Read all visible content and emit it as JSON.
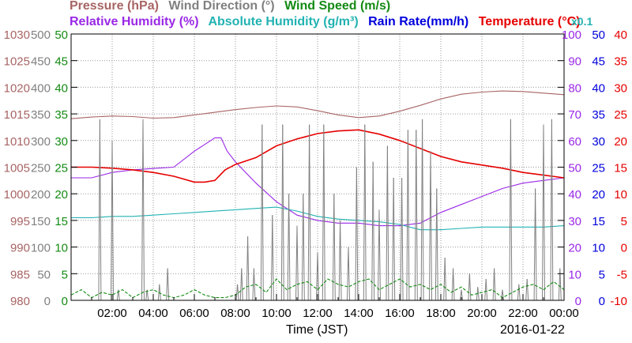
{
  "legend": {
    "row1": [
      {
        "text": "Pressure (hPa)",
        "color": "#a86464"
      },
      {
        "text": "Wind Direction (°)",
        "color": "#808080"
      },
      {
        "text": "Wind Speed (m/s)",
        "color": "#138b13"
      }
    ],
    "row2": [
      {
        "text": "Relative Humidity (%)",
        "color": "#9a28e6"
      },
      {
        "text": "Absolute Humidity (g/m³)",
        "color": "#22b2b2"
      },
      {
        "text": "Rain Rate(mm/h)",
        "color": "#0000dc"
      },
      {
        "text": "Temperature (°C)",
        "color": "#e60000"
      }
    ],
    "rain_factor": "x0.1",
    "rain_factor_color": "#22b2b2"
  },
  "xaxis": {
    "title": "Time (JST)",
    "date": "2016-01-22"
  },
  "chart_data": {
    "type": "line",
    "x_unit": "hours since 00:00 JST",
    "xlim": [
      0,
      24
    ],
    "xtick_labels": [
      "02:00",
      "04:00",
      "06:00",
      "08:00",
      "10:00",
      "12:00",
      "14:00",
      "16:00",
      "18:00",
      "20:00",
      "22:00",
      "00:00"
    ],
    "xtick_values": [
      2,
      4,
      6,
      8,
      10,
      12,
      14,
      16,
      18,
      20,
      22,
      24
    ],
    "axes": [
      {
        "name": "Pressure (hPa)",
        "side": "left",
        "color": "#a86464",
        "range": [
          980,
          1030
        ],
        "ticks": [
          980,
          985,
          990,
          995,
          1000,
          1005,
          1010,
          1015,
          1020,
          1025,
          1030
        ]
      },
      {
        "name": "Wind Direction (°)",
        "side": "left",
        "color": "#808080",
        "range": [
          0,
          500
        ],
        "ticks": [
          0,
          50,
          100,
          150,
          200,
          250,
          300,
          350,
          400,
          450,
          500
        ]
      },
      {
        "name": "Wind Speed (m/s)",
        "side": "left",
        "color": "#138b13",
        "range": [
          0,
          50
        ],
        "ticks": [
          0,
          5,
          10,
          15,
          20,
          25,
          30,
          35,
          40,
          45,
          50
        ]
      },
      {
        "name": "Relative Humidity (%)",
        "side": "right",
        "color": "#9a28e6",
        "range": [
          0,
          100
        ],
        "ticks": [
          0,
          10,
          20,
          30,
          40,
          50,
          60,
          70,
          80,
          90,
          100
        ]
      },
      {
        "name": "Rain Rate(mm/h)",
        "side": "right",
        "color": "#0000dc",
        "range": [
          0,
          50
        ],
        "ticks": [
          0,
          5,
          10,
          15,
          20,
          25,
          30,
          35,
          40,
          45,
          50
        ]
      },
      {
        "name": "Temperature (°C)",
        "side": "right",
        "color": "#e60000",
        "range": [
          -10,
          40
        ],
        "ticks": [
          -10,
          -5,
          0,
          5,
          10,
          15,
          20,
          25,
          30,
          35,
          40
        ]
      }
    ],
    "series": [
      {
        "name": "Pressure (hPa)",
        "axis": 0,
        "color": "#a86464",
        "x": [
          0,
          1,
          2,
          3,
          4,
          5,
          6,
          7,
          8,
          9,
          10,
          11,
          12,
          13,
          14,
          15,
          16,
          17,
          18,
          19,
          20,
          21,
          22,
          23,
          24
        ],
        "y": [
          1014.1,
          1014.4,
          1014.6,
          1014.5,
          1014.2,
          1014.3,
          1014.8,
          1015.3,
          1015.8,
          1016.2,
          1016.5,
          1016.3,
          1015.6,
          1014.8,
          1014.3,
          1014.6,
          1015.5,
          1016.6,
          1017.8,
          1018.7,
          1019.1,
          1019.3,
          1019.2,
          1018.9,
          1018.6
        ]
      },
      {
        "name": "Relative Humidity (%)",
        "axis": 3,
        "color": "#9a28e6",
        "x": [
          0,
          1,
          1.5,
          2,
          3,
          4,
          5,
          6,
          7,
          7.3,
          7.6,
          8,
          9,
          10,
          11,
          12,
          13,
          14,
          15,
          16,
          17,
          17.5,
          18,
          19,
          20,
          21,
          22,
          23,
          24
        ],
        "y": [
          46,
          46,
          47,
          48,
          49,
          49.5,
          50,
          56,
          61,
          61,
          56,
          52,
          44,
          37,
          32,
          30,
          29,
          29,
          28,
          28,
          29,
          31,
          33,
          36,
          39,
          42,
          44,
          45,
          46
        ]
      },
      {
        "name": "Absolute Humidity (g/m³)",
        "axis": 3,
        "color": "#22b2b2",
        "x": [
          0,
          1,
          2,
          3,
          4,
          5,
          6,
          7,
          8,
          9,
          10,
          11,
          12,
          13,
          14,
          15,
          16,
          17,
          18,
          19,
          20,
          21,
          22,
          23,
          24
        ],
        "y": [
          31,
          31,
          31.5,
          31.5,
          32,
          32.5,
          33,
          33.5,
          34,
          34.5,
          35,
          33.5,
          31.5,
          30.5,
          30,
          29.5,
          28.5,
          26.5,
          26.5,
          27,
          27.5,
          27.5,
          27.5,
          27.5,
          28
        ]
      },
      {
        "name": "Temperature (°C)",
        "axis": 5,
        "color": "#e60000",
        "x": [
          0,
          1,
          2,
          3,
          4,
          5,
          6,
          6.5,
          7,
          7.5,
          8,
          9,
          10,
          11,
          12,
          13,
          14,
          15,
          16,
          17,
          18,
          19,
          20,
          21,
          22,
          23,
          24
        ],
        "y": [
          15,
          15,
          14.8,
          14.5,
          14,
          13.3,
          12.2,
          12.2,
          12.5,
          14.5,
          15.5,
          16.8,
          19,
          20.3,
          21.3,
          21.8,
          22,
          21.2,
          20,
          18.5,
          17,
          16,
          15.4,
          14.8,
          14,
          13.5,
          13
        ]
      },
      {
        "name": "Wind Direction (°)",
        "axis": 1,
        "color": "#808080",
        "style": "spikes",
        "x": [
          1.4,
          2.0,
          2.3,
          3.5,
          3.7,
          4.3,
          4.7,
          8.1,
          8.3,
          8.6,
          8.9,
          9.3,
          9.8,
          10.3,
          10.6,
          11.0,
          11.3,
          11.6,
          12.0,
          12.3,
          12.8,
          13.1,
          13.5,
          13.9,
          14.3,
          14.7,
          15.0,
          15.4,
          15.7,
          16.1,
          16.4,
          16.8,
          17.1,
          17.5,
          17.8,
          18.2,
          18.6,
          19.0,
          19.4,
          19.8,
          20.2,
          20.6,
          21.0,
          21.4,
          21.8,
          22.2,
          22.6,
          23.0,
          23.4,
          23.8
        ],
        "y": [
          340,
          300,
          20,
          340,
          20,
          30,
          60,
          30,
          60,
          120,
          60,
          330,
          160,
          330,
          200,
          140,
          200,
          330,
          90,
          330,
          200,
          150,
          100,
          250,
          330,
          260,
          170,
          290,
          230,
          230,
          320,
          320,
          340,
          280,
          210,
          80,
          60,
          20,
          50,
          25,
          40,
          60,
          20,
          340,
          30,
          40,
          210,
          330,
          340,
          60
        ]
      },
      {
        "name": "Wind Speed (m/s)",
        "axis": 2,
        "color": "#138b13",
        "style": "dashed",
        "x": [
          0,
          0.5,
          1,
          1.5,
          2,
          2.5,
          3,
          3.5,
          4,
          4.5,
          5,
          5.5,
          6,
          6.5,
          7,
          7.5,
          8,
          8.5,
          9,
          9.5,
          10,
          10.5,
          11,
          11.5,
          12,
          12.5,
          13,
          13.5,
          14,
          14.5,
          15,
          15.5,
          16,
          16.5,
          17,
          17.5,
          18,
          18.5,
          19,
          19.5,
          20,
          20.5,
          21,
          21.5,
          22,
          22.5,
          23,
          23.5,
          24
        ],
        "y": [
          1,
          2,
          0.5,
          1.5,
          1,
          2,
          0.5,
          1.5,
          2,
          1,
          0.5,
          1,
          2,
          1,
          0.5,
          0.5,
          1,
          2.5,
          3,
          1.5,
          4,
          2,
          3,
          3.5,
          2,
          4,
          3,
          2.5,
          3.5,
          4,
          2,
          3,
          4,
          2.5,
          3,
          2,
          3,
          1.5,
          2.5,
          1,
          1.5,
          2,
          0.5,
          1.5,
          2.5,
          3,
          2,
          3.5,
          2
        ]
      }
    ]
  }
}
